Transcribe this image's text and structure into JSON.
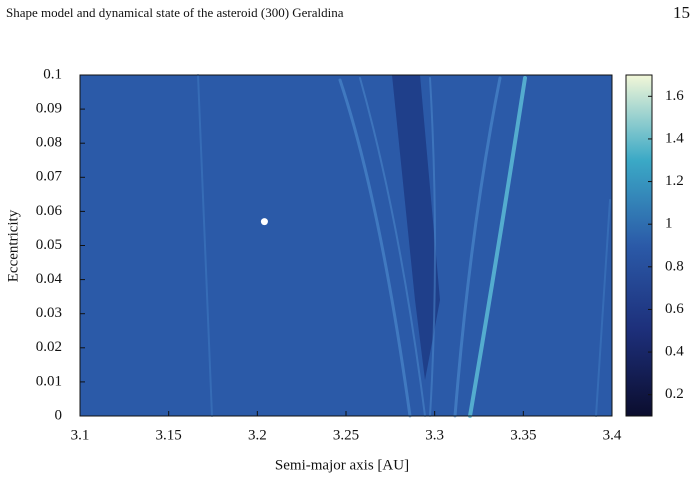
{
  "header": {
    "title": "Shape model and dynamical state of the asteroid (300) Geraldina",
    "page": "15"
  },
  "chart_data": {
    "type": "scatter",
    "xlabel": "Semi-major axis [AU]",
    "ylabel": "Eccentricity",
    "x": [
      3.204
    ],
    "y": [
      0.057
    ],
    "color": "#ffffff",
    "background": "#2b5aa8",
    "xlim": [
      3.1,
      3.4
    ],
    "ylim": [
      0,
      0.1
    ],
    "xticks": [
      3.1,
      3.15,
      3.2,
      3.25,
      3.3,
      3.35,
      3.4
    ],
    "yticks": [
      0,
      0.01,
      0.02,
      0.03,
      0.04,
      0.05,
      0.06,
      0.07,
      0.08,
      0.09,
      0.1
    ],
    "colorbar": {
      "lim": [
        0.1,
        1.7
      ],
      "ticks": [
        0.2,
        0.4,
        0.6,
        0.8,
        1,
        1.2,
        1.4,
        1.6
      ]
    }
  }
}
